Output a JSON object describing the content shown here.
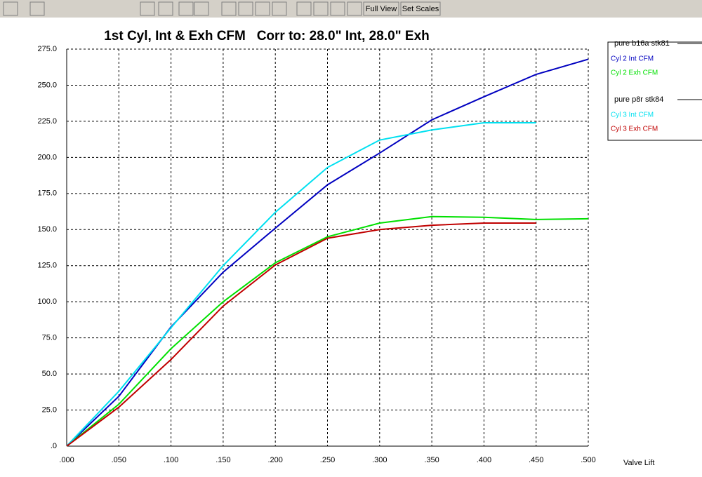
{
  "toolbar": {
    "buttons": [
      "Full View",
      "Set Scales"
    ]
  },
  "chart_data": {
    "type": "line",
    "title": "1st Cyl, Int & Exh CFM   Corr to: 28.0\" Int, 28.0\" Exh",
    "x_label": "Valve Lift",
    "x": [
      0,
      0.05,
      0.1,
      0.15,
      0.2,
      0.25,
      0.3,
      0.35,
      0.4,
      0.45,
      0.5
    ],
    "xlim": [
      0,
      0.5
    ],
    "xticks": [
      {
        "value": 0,
        "label": ".000"
      },
      {
        "value": 0.05,
        "label": ".050"
      },
      {
        "value": 0.1,
        "label": ".100"
      },
      {
        "value": 0.15,
        "label": ".150"
      },
      {
        "value": 0.2,
        "label": ".200"
      },
      {
        "value": 0.25,
        "label": ".250"
      },
      {
        "value": 0.3,
        "label": ".300"
      },
      {
        "value": 0.35,
        "label": ".350"
      },
      {
        "value": 0.4,
        "label": ".400"
      },
      {
        "value": 0.45,
        "label": ".450"
      },
      {
        "value": 0.5,
        "label": ".500"
      }
    ],
    "ylim": [
      0,
      275
    ],
    "yticks": [
      {
        "value": 0,
        "label": ".0"
      },
      {
        "value": 25,
        "label": "25.0"
      },
      {
        "value": 50,
        "label": "50.0"
      },
      {
        "value": 75,
        "label": "75.0"
      },
      {
        "value": 100,
        "label": "100.0"
      },
      {
        "value": 125,
        "label": "125.0"
      },
      {
        "value": 150,
        "label": "150.0"
      },
      {
        "value": 175,
        "label": "175.0"
      },
      {
        "value": 200,
        "label": "200.0"
      },
      {
        "value": 225,
        "label": "225.0"
      },
      {
        "value": 250,
        "label": "250.0"
      },
      {
        "value": 275,
        "label": "275.0"
      }
    ],
    "grid": true,
    "groups": [
      {
        "name": "pure b16a stk81",
        "series": [
          {
            "name": "Cyl 2 Int CFM",
            "color": "#0000c0",
            "values": [
              0,
              34.5,
              82.6,
              120.5,
              151,
              181,
              203,
              226,
              242,
              257.5,
              268
            ]
          },
          {
            "name": "Cyl 2 Exh CFM",
            "color": "#00e000",
            "values": [
              0,
              29,
              67.5,
              100,
              127,
              145,
              154.5,
              159,
              158.5,
              157,
              157.5
            ]
          }
        ]
      },
      {
        "name": "pure p8r stk84",
        "series": [
          {
            "name": "Cyl 3 Int CFM",
            "color": "#00e0f0",
            "values": [
              0,
              38,
              82,
              125,
              162,
              193,
              212,
              219,
              224,
              224,
              null
            ]
          },
          {
            "name": "Cyl 3 Exh CFM",
            "color": "#c00000",
            "values": [
              0,
              27,
              60,
              97,
              125.5,
              144,
              150,
              153,
              154.5,
              154.5,
              null
            ]
          }
        ]
      }
    ]
  }
}
